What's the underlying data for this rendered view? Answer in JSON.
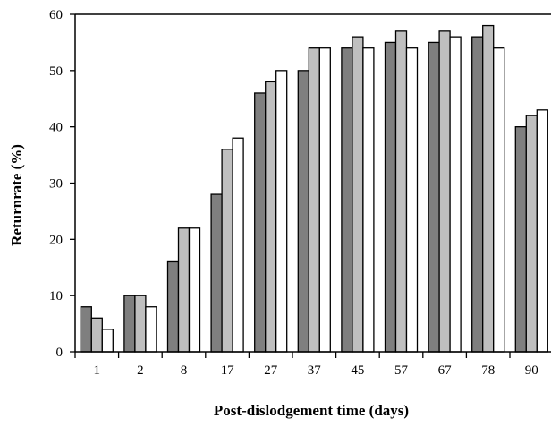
{
  "chart_data": {
    "type": "bar",
    "title": "",
    "xlabel": "Post-dislodgement time (days)",
    "ylabel": "Returnrate (%)",
    "categories": [
      "1",
      "2",
      "8",
      "17",
      "27",
      "37",
      "45",
      "57",
      "67",
      "78",
      "90"
    ],
    "series": [
      {
        "values": [
          8,
          10,
          16,
          28,
          46,
          50,
          54,
          55,
          55,
          56,
          40
        ],
        "color": "#7f7f7f"
      },
      {
        "values": [
          6,
          10,
          22,
          36,
          48,
          54,
          56,
          57,
          57,
          58,
          42
        ],
        "color": "#bfbfbf"
      },
      {
        "values": [
          4,
          8,
          22,
          38,
          50,
          54,
          54,
          54,
          56,
          54,
          43
        ],
        "color": "#ffffff"
      }
    ],
    "ylim": [
      0,
      60
    ],
    "yticks": [
      "0",
      "10",
      "20",
      "30",
      "40",
      "50",
      "60"
    ],
    "grid": false,
    "legend": "none"
  }
}
